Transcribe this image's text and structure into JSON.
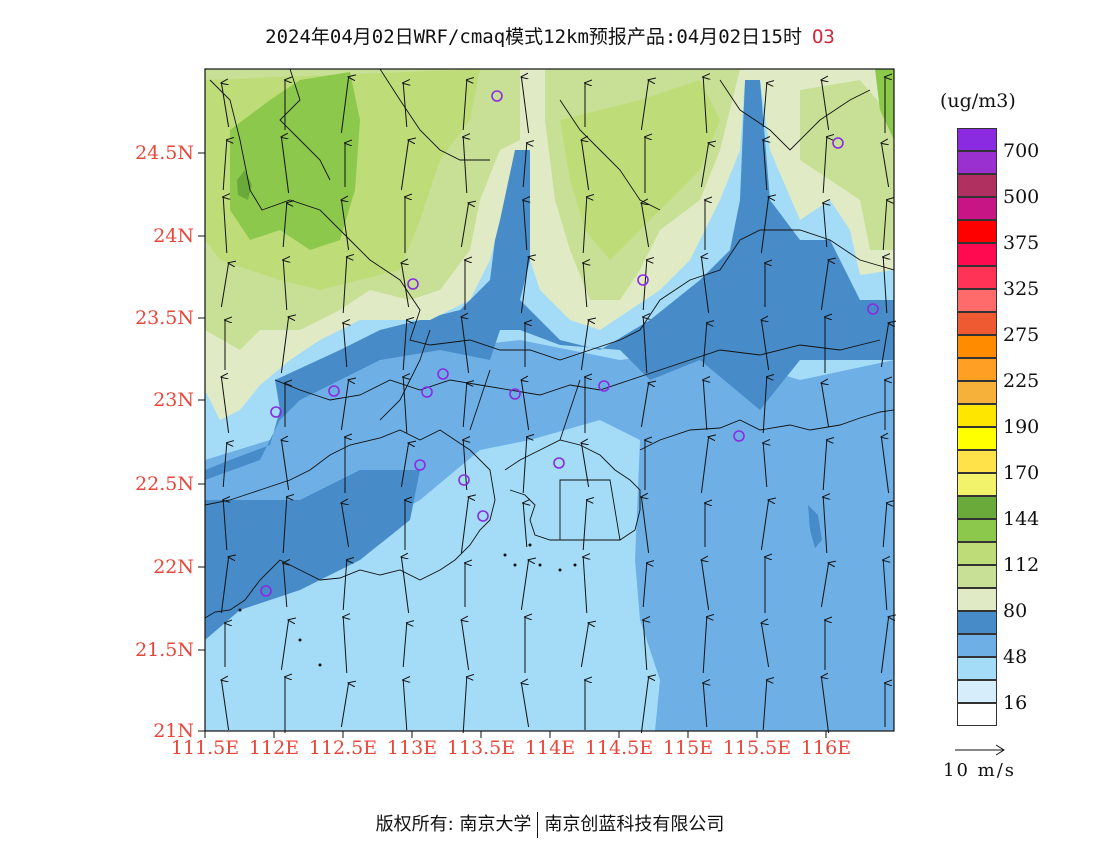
{
  "title": {
    "main": "2024年04月02日WRF/cmaq模式12km预报产品:04月02日15时",
    "species": "O3"
  },
  "legend": {
    "unit": "(ug/m3)",
    "bands": [
      {
        "color": "#8a2be2",
        "label": "700"
      },
      {
        "color": "#9b30d0",
        "label": ""
      },
      {
        "color": "#b03060",
        "label": "500"
      },
      {
        "color": "#c71585",
        "label": ""
      },
      {
        "color": "#ff0000",
        "label": "375"
      },
      {
        "color": "#ff0a50",
        "label": ""
      },
      {
        "color": "#ff3355",
        "label": "325"
      },
      {
        "color": "#ff6a6a",
        "label": ""
      },
      {
        "color": "#f05a32",
        "label": "275"
      },
      {
        "color": "#ff8c00",
        "label": ""
      },
      {
        "color": "#ffa024",
        "label": "225"
      },
      {
        "color": "#f6b13a",
        "label": ""
      },
      {
        "color": "#ffe600",
        "label": "190"
      },
      {
        "color": "#ffff00",
        "label": ""
      },
      {
        "color": "#ffe24a",
        "label": "170"
      },
      {
        "color": "#f2f36a",
        "label": ""
      },
      {
        "color": "#6aaa3a",
        "label": "144"
      },
      {
        "color": "#8cc84b",
        "label": ""
      },
      {
        "color": "#bedc78",
        "label": "112"
      },
      {
        "color": "#c8e096",
        "label": ""
      },
      {
        "color": "#e0ebc6",
        "label": "80"
      },
      {
        "color": "#478cc8",
        "label": ""
      },
      {
        "color": "#6eb0e6",
        "label": "48"
      },
      {
        "color": "#a4dcf8",
        "label": ""
      },
      {
        "color": "#d6eefc",
        "label": "16"
      },
      {
        "color": "#ffffff",
        "label": ""
      }
    ]
  },
  "axes": {
    "lat_labels": [
      "24.5N",
      "24N",
      "23.5N",
      "23N",
      "22.5N",
      "22N",
      "21.5N",
      "21N"
    ],
    "lon_labels": [
      "111.5E",
      "112E",
      "112.5E",
      "113E",
      "113.5E",
      "114E",
      "114.5E",
      "115E",
      "115.5E",
      "116E"
    ]
  },
  "wind_key": {
    "label": "10 m/s"
  },
  "footer": {
    "left": "版权所有: 南京大学",
    "right": "南京创蓝科技有限公司"
  }
}
